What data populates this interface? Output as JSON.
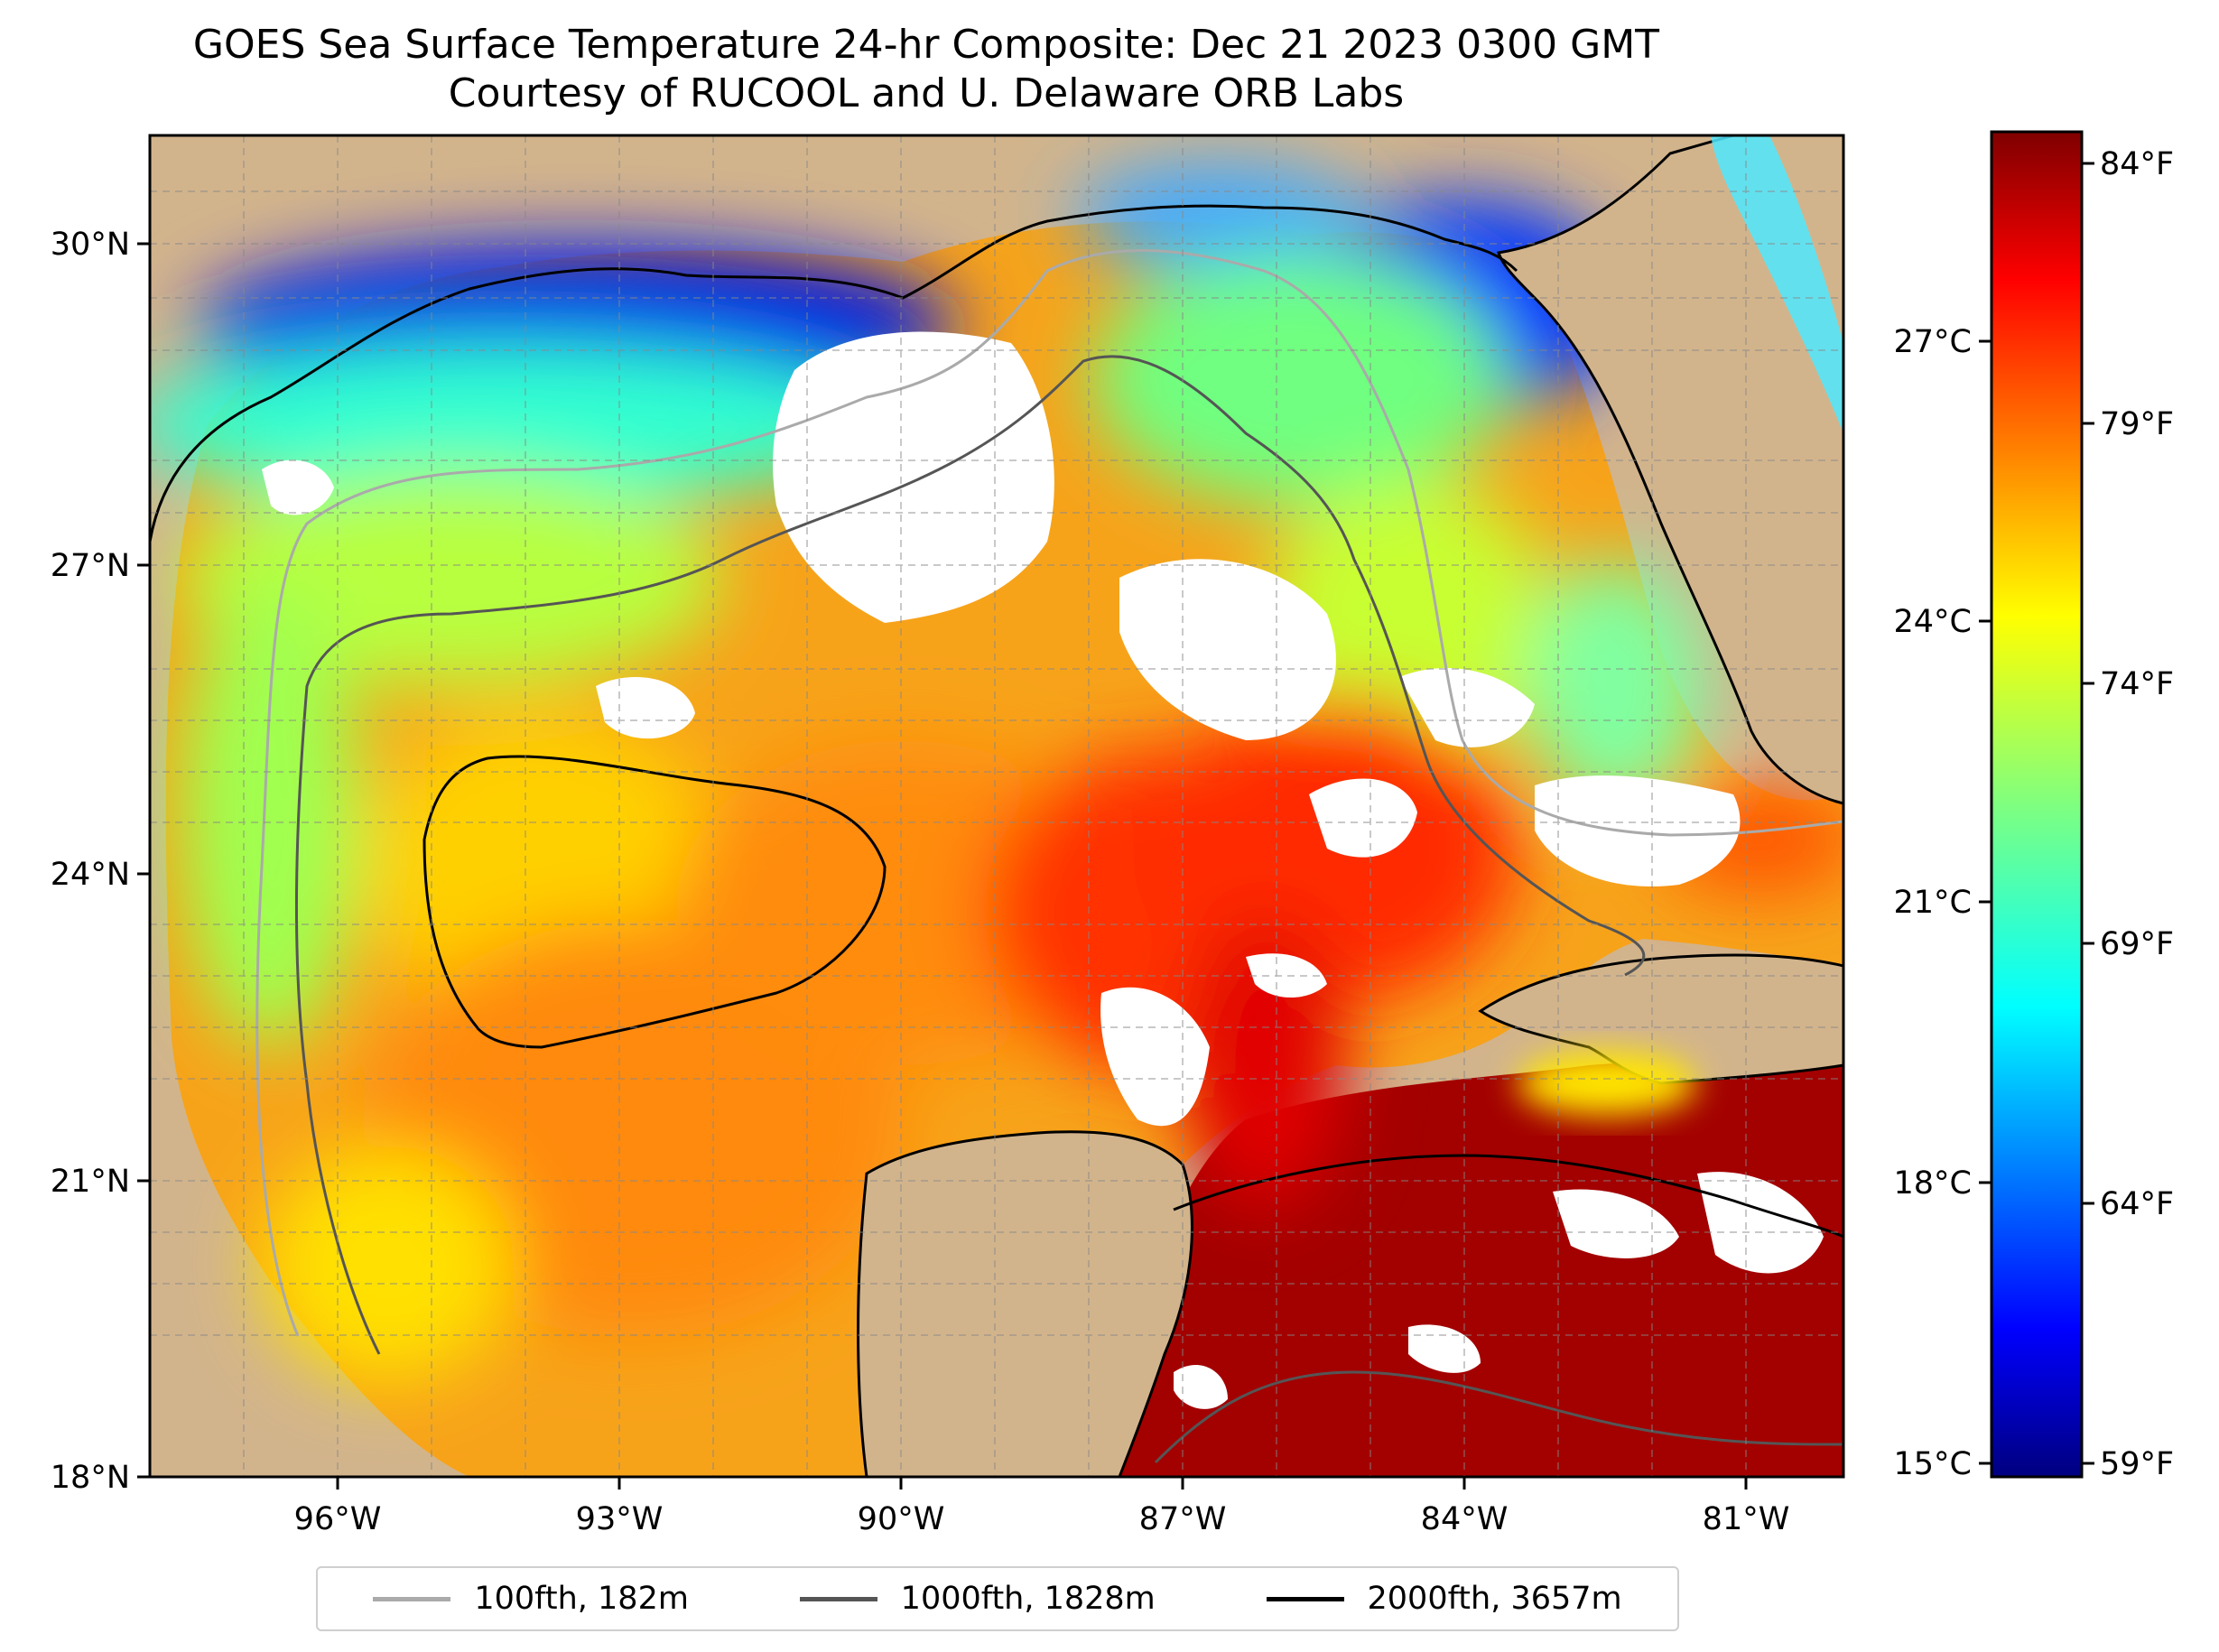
{
  "title": {
    "line1": "GOES Sea Surface Temperature 24-hr Composite: Dec 21 2023 0300 GMT",
    "line2": "Courtesy of RUCOOL and U. Delaware ORB Labs"
  },
  "map": {
    "lon_range": [
      -98,
      -80
    ],
    "lat_range": [
      18,
      30.7
    ],
    "lon_ticks": [
      "96°W",
      "93°W",
      "90°W",
      "87°W",
      "84°W",
      "81°W"
    ],
    "lat_ticks": [
      "18°N",
      "21°N",
      "24°N",
      "27°N",
      "30°N"
    ],
    "land_color": "#d2b48c",
    "grid": "dashed"
  },
  "colorbar": {
    "celsius_ticks": [
      "15°C",
      "18°C",
      "21°C",
      "24°C",
      "27°C"
    ],
    "fahrenheit_ticks": [
      "59°F",
      "64°F",
      "69°F",
      "74°F",
      "79°F",
      "84°F"
    ],
    "colormap": "jet",
    "range_f": [
      58.6,
      84.7
    ]
  },
  "legend": [
    {
      "label": "100fth, 182m",
      "color": "#aaaaaa"
    },
    {
      "label": "1000fth, 1828m",
      "color": "#555555"
    },
    {
      "label": "2000fth, 3657m",
      "color": "#000000"
    }
  ]
}
